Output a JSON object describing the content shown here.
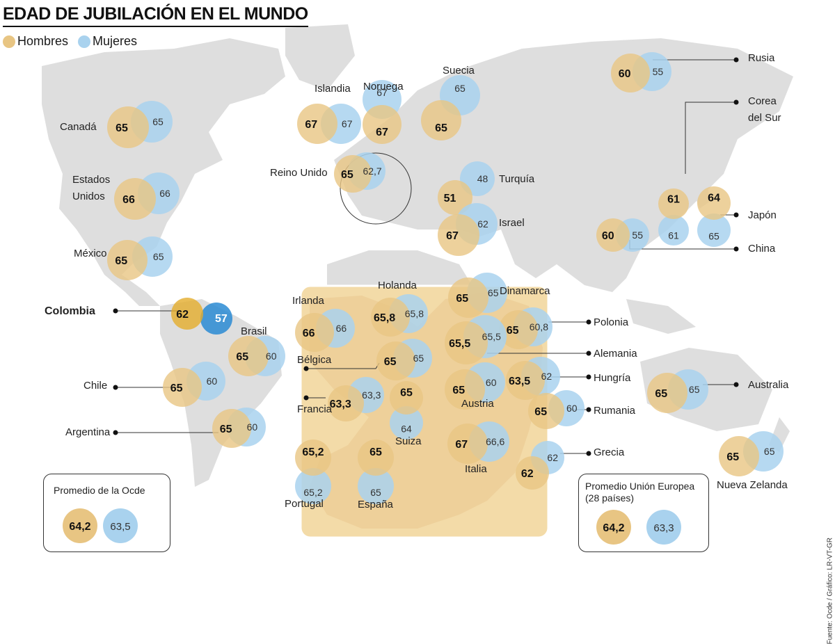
{
  "title": "EDAD DE JUBILACIÓN EN EL MUNDO",
  "legend": {
    "men": "Hombres",
    "women": "Mujeres"
  },
  "colors": {
    "men": "#e8c583",
    "women": "#a9d2ee",
    "overlap": "#c4c294",
    "colombia_men": "#e3ad2c",
    "colombia_women": "#2a8bd3",
    "land": "#dedede",
    "europe_inset": "#f3dba8"
  },
  "source": "Fuente: Ocde / Gráfico: LR-VT-GR",
  "oecd_average": {
    "title": "Promedio de la Ocde",
    "men": "64,2",
    "women": "63,5"
  },
  "eu_average": {
    "title_line1": "Promedio Unión Europea",
    "title_line2": "(28 países)",
    "men": "64,2",
    "women": "63,3"
  },
  "countries": [
    {
      "name": "Canadá",
      "men": "65",
      "women": "65"
    },
    {
      "name_line1": "Estados",
      "name_line2": "Unidos",
      "men": "66",
      "women": "66"
    },
    {
      "name": "México",
      "men": "65",
      "women": "65"
    },
    {
      "name": "Colombia",
      "men": "62",
      "women": "57"
    },
    {
      "name": "Brasil",
      "men": "65",
      "women": "60"
    },
    {
      "name": "Chile",
      "men": "65",
      "women": "60"
    },
    {
      "name": "Argentina",
      "men": "65",
      "women": "60"
    },
    {
      "name": "Islandia",
      "men": "67",
      "women": "67"
    },
    {
      "name": "Noruega",
      "men": "67",
      "women": "67"
    },
    {
      "name": "Suecia",
      "men": "65",
      "women": "65"
    },
    {
      "name": "Reino Unido",
      "men": "65",
      "women": "62,7"
    },
    {
      "name": "Turquía",
      "men": "51",
      "women": "48"
    },
    {
      "name": "Israel",
      "men": "67",
      "women": "62"
    },
    {
      "name": "Rusia",
      "men": "60",
      "women": "55"
    },
    {
      "name_line1": "Corea",
      "name_line2": "del Sur",
      "men": "61",
      "women": "61"
    },
    {
      "name": "Japón",
      "men": "64",
      "women": "65"
    },
    {
      "name": "China",
      "men": "60",
      "women": "55"
    },
    {
      "name": "Australia",
      "men": "65",
      "women": "65"
    },
    {
      "name": "Nueva Zelanda",
      "men": "65",
      "women": "65"
    },
    {
      "name": "Irlanda",
      "men": "66",
      "women": "66"
    },
    {
      "name": "Holanda",
      "men": "65,8",
      "women": "65,8"
    },
    {
      "name": "Dinamarca",
      "men": "65",
      "women": "65"
    },
    {
      "name": "Polonia",
      "men": "65",
      "women": "60,8"
    },
    {
      "name": "Alemania",
      "men": "65,5",
      "women": "65,5"
    },
    {
      "name": "Bélgica",
      "men": "65",
      "women": "65"
    },
    {
      "name": "Francia",
      "men": "63,3",
      "women": "63,3"
    },
    {
      "name": "Suiza",
      "men": "65",
      "women": "64"
    },
    {
      "name": "Austria",
      "men": "65",
      "women": "60"
    },
    {
      "name": "Hungría",
      "men": "63,5",
      "women": "62"
    },
    {
      "name": "Rumania",
      "men": "65",
      "women": "60"
    },
    {
      "name": "Italia",
      "men": "67",
      "women": "66,6"
    },
    {
      "name": "Grecia",
      "men": "62",
      "women": "62"
    },
    {
      "name": "Portugal",
      "men": "65,2",
      "women": "65,2"
    },
    {
      "name": "España",
      "men": "65",
      "women": "65"
    }
  ]
}
